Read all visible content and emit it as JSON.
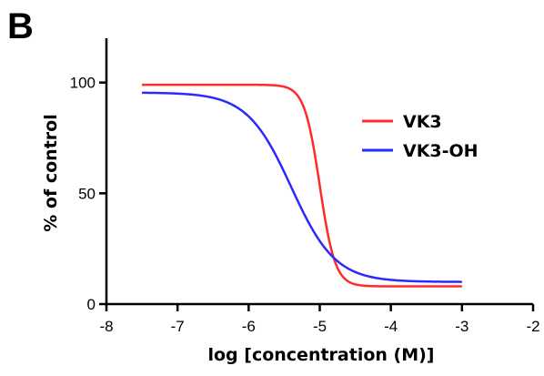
{
  "panel_label": "B",
  "chart_data": {
    "type": "line",
    "xlabel": "log [concentration (M)]",
    "ylabel": "% of control",
    "xlim": [
      -8,
      -2
    ],
    "ylim": [
      0,
      120
    ],
    "x_ticks": [
      -8,
      -7,
      -6,
      -5,
      -4,
      -3,
      -2
    ],
    "x_tick_labels": [
      "-8",
      "-7",
      "-6",
      "-5",
      "-4",
      "-3",
      "-2"
    ],
    "y_ticks": [
      0,
      50,
      100
    ],
    "y_tick_labels": [
      "0",
      "50",
      "100"
    ],
    "legend_position": "right",
    "series": [
      {
        "name": "VK3",
        "color": "#ff2a2a",
        "model": "four_parameter_logistic",
        "top": 99,
        "bottom": 8,
        "log_ic50": -5.0,
        "hill_slope": -4.0,
        "x_range": [
          -7.5,
          -3
        ]
      },
      {
        "name": "VK3-OH",
        "color": "#2a2aff",
        "model": "four_parameter_logistic",
        "top": 95.5,
        "bottom": 10,
        "log_ic50": -5.4,
        "hill_slope": -1.4,
        "x_range": [
          -7.5,
          -3
        ]
      }
    ]
  }
}
